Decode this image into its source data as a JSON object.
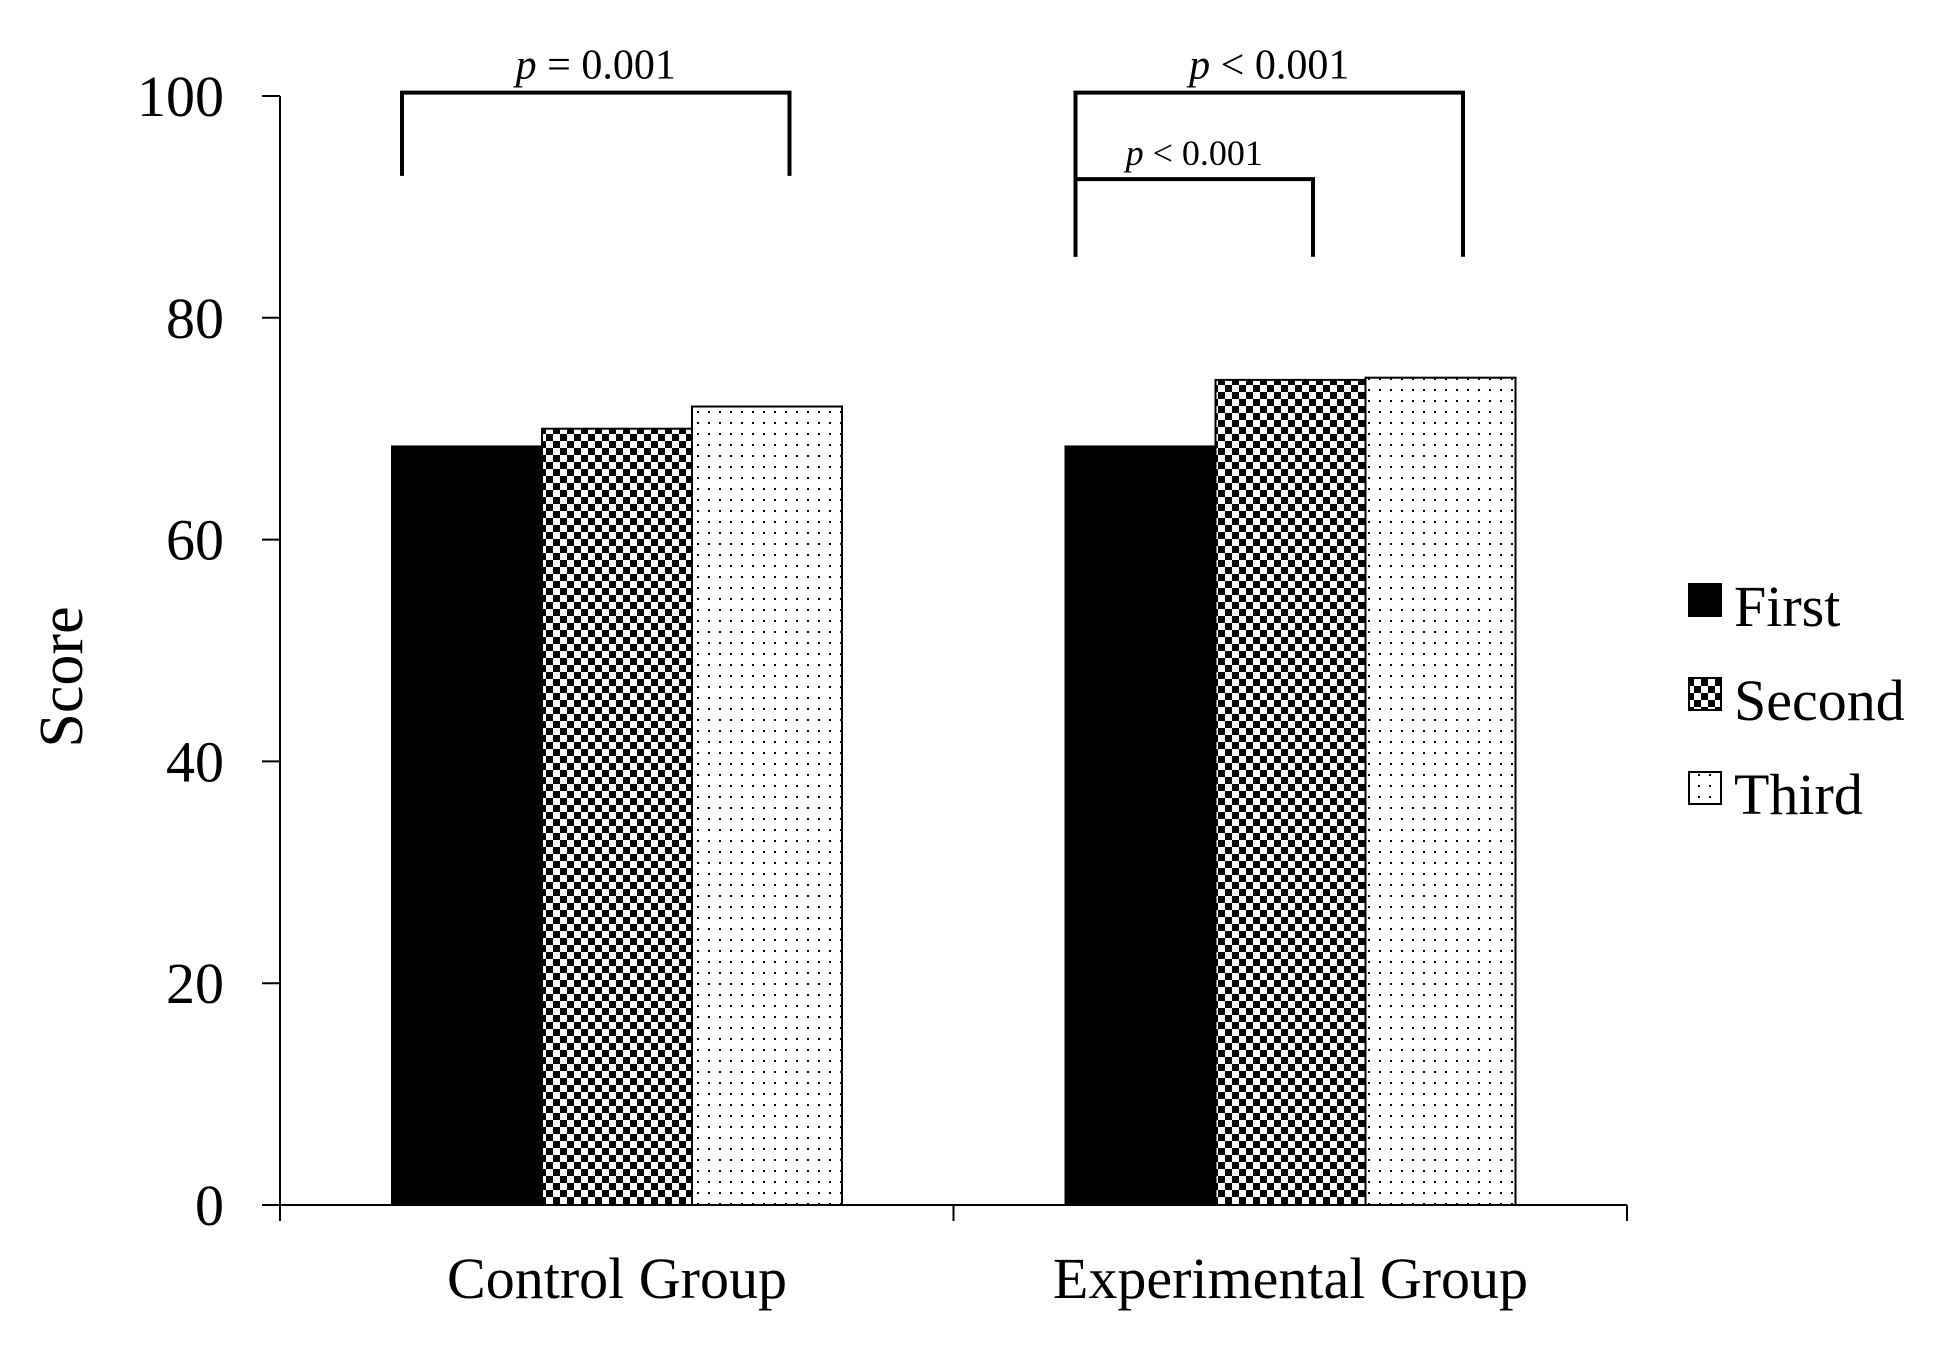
{
  "chart_data": {
    "type": "bar",
    "title": "",
    "xlabel": "",
    "ylabel": "Score",
    "ylim": [
      0,
      100
    ],
    "yticks": [
      "0",
      "20",
      "40",
      "60",
      "80",
      "100"
    ],
    "categories": [
      "Control Group",
      "Experimental Group"
    ],
    "series": [
      {
        "name": "First",
        "pattern": "solid",
        "values": [
          68.4,
          68.4
        ]
      },
      {
        "name": "Second",
        "pattern": "checker",
        "values": [
          70.0,
          74.4
        ]
      },
      {
        "name": "Third",
        "pattern": "dots",
        "values": [
          72.0,
          74.6
        ]
      }
    ],
    "legend_position": "right",
    "annotations": [
      {
        "category": 0,
        "from_series": 0,
        "to_series": 2,
        "prefix": "p",
        "text": " = 0.001",
        "level": 100.3,
        "leg_to": 92.8
      },
      {
        "category": 1,
        "from_series": 0,
        "to_series": 2,
        "prefix": "p",
        "text": " < 0.001",
        "level": 100.3,
        "leg_to": 85.5
      },
      {
        "category": 1,
        "from_series": 0,
        "to_series": 1,
        "prefix": "p",
        "text": " < 0.001",
        "level": 92.5,
        "leg_to": 85.5
      }
    ]
  },
  "colors": {
    "ink": "#000000",
    "background": "#ffffff"
  }
}
